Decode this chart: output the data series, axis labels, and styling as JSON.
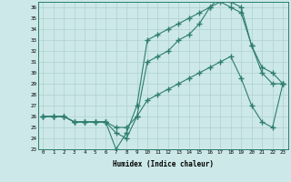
{
  "xlabel": "Humidex (Indice chaleur)",
  "background_color": "#cce8e8",
  "line_color": "#2e7d6e",
  "grid_color": "#b0d0d0",
  "xlim": [
    -0.5,
    23.5
  ],
  "ylim": [
    23,
    36.5
  ],
  "xtick_labels": [
    "0",
    "1",
    "2",
    "3",
    "4",
    "5",
    "6",
    "7",
    "8",
    "9",
    "10",
    "11",
    "12",
    "13",
    "14",
    "15",
    "16",
    "17",
    "18",
    "19",
    "20",
    "21",
    "22",
    "23"
  ],
  "ytick_labels": [
    "23",
    "24",
    "25",
    "26",
    "27",
    "28",
    "29",
    "30",
    "31",
    "32",
    "33",
    "34",
    "35",
    "36"
  ],
  "ytick_vals": [
    23,
    24,
    25,
    26,
    27,
    28,
    29,
    30,
    31,
    32,
    33,
    34,
    35,
    36
  ],
  "line1_x": [
    0,
    1,
    2,
    3,
    4,
    5,
    6,
    7,
    8,
    9,
    10,
    11,
    12,
    13,
    14,
    15,
    16,
    17,
    18,
    19,
    20,
    21,
    22,
    23
  ],
  "line1_y": [
    26,
    26,
    26,
    25.5,
    25.5,
    25.5,
    25.5,
    23,
    24.5,
    27,
    33,
    33.5,
    34,
    34.5,
    35,
    35.5,
    36,
    36.5,
    36,
    35.5,
    32.5,
    30,
    29,
    29
  ],
  "line2_x": [
    0,
    1,
    2,
    3,
    4,
    5,
    6,
    7,
    8,
    9,
    10,
    11,
    12,
    13,
    14,
    15,
    16,
    17,
    18,
    19,
    20,
    21,
    22,
    23
  ],
  "line2_y": [
    26,
    26,
    26,
    25.5,
    25.5,
    25.5,
    25.5,
    24.5,
    24,
    26,
    31,
    31.5,
    32,
    33,
    33.5,
    34.5,
    36,
    37,
    36.5,
    36,
    32.5,
    30.5,
    30,
    29
  ],
  "line3_x": [
    0,
    1,
    2,
    3,
    4,
    5,
    6,
    7,
    8,
    9,
    10,
    11,
    12,
    13,
    14,
    15,
    16,
    17,
    18,
    19,
    20,
    21,
    22,
    23
  ],
  "line3_y": [
    26,
    26,
    26,
    25.5,
    25.5,
    25.5,
    25.5,
    25,
    25,
    26,
    27.5,
    28,
    28.5,
    29,
    29.5,
    30,
    30.5,
    31,
    31.5,
    29.5,
    27,
    25.5,
    25,
    29
  ]
}
